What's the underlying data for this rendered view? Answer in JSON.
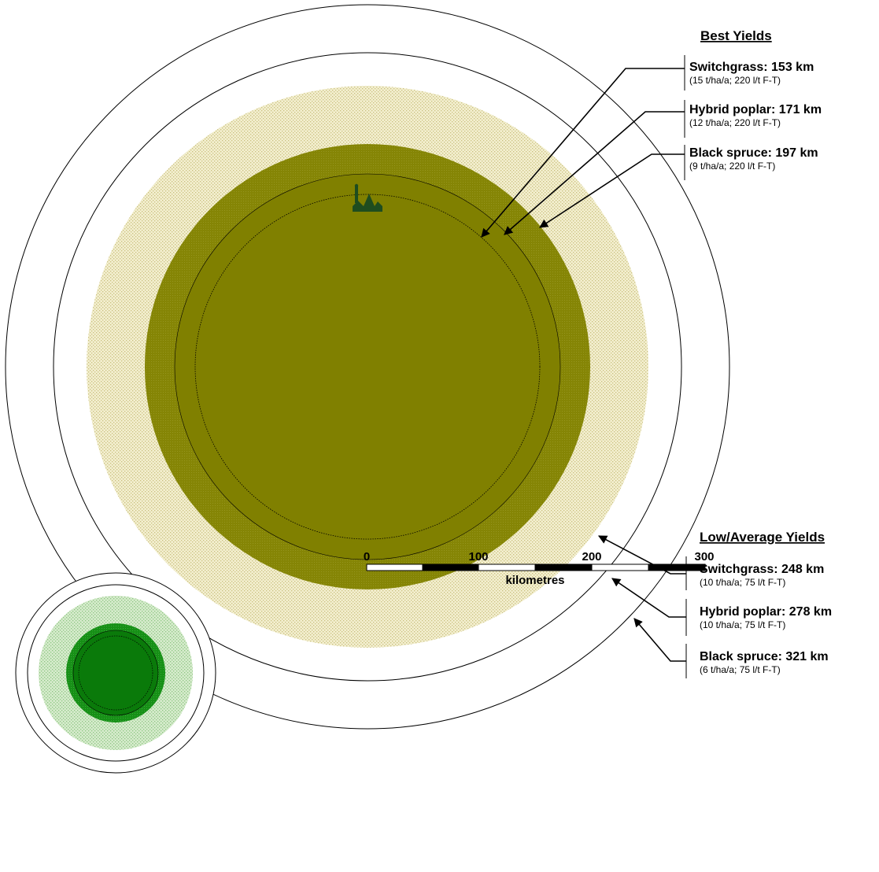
{
  "colors": {
    "olive_dark": "#7f7f00",
    "olive_mid": "#8a8a12",
    "stipple_bg": "#f3efcf",
    "stipple_dot": "#cfc68a",
    "green_dark": "#0b7d0b",
    "green_mid": "#2a962a",
    "green_stipple_bg": "#d9ecd0",
    "green_stipple_dot": "#93c98a",
    "factory": "#1f4d1f"
  },
  "icons": {
    "factory": "factory-icon"
  },
  "best": {
    "title": "Best Yields",
    "items": [
      {
        "name": "Switchgrass: 153 km",
        "sub": "(15 t/ha/a; 220 l/t F-T)",
        "km": 153
      },
      {
        "name": "Hybrid poplar: 171 km",
        "sub": "(12 t/ha/a; 220 l/t F-T)",
        "km": 171
      },
      {
        "name": "Black spruce: 197 km",
        "sub": "(9 t/ha/a; 220 l/t F-T)",
        "km": 197
      }
    ]
  },
  "low": {
    "title": "Low/Average Yields",
    "items": [
      {
        "name": "Switchgrass: 248 km",
        "sub": "(10 t/ha/a; 75 l/t F-T)",
        "km": 248
      },
      {
        "name": "Hybrid poplar: 278 km",
        "sub": "(10 t/ha/a; 75 l/t F-T)",
        "km": 278
      },
      {
        "name": "Black spruce: 321 km",
        "sub": "(6 t/ha/a; 75 l/t F-T)",
        "km": 321
      }
    ]
  },
  "scale": {
    "ticks": [
      "0",
      "100",
      "200",
      "300"
    ],
    "unit": "kilometres"
  }
}
